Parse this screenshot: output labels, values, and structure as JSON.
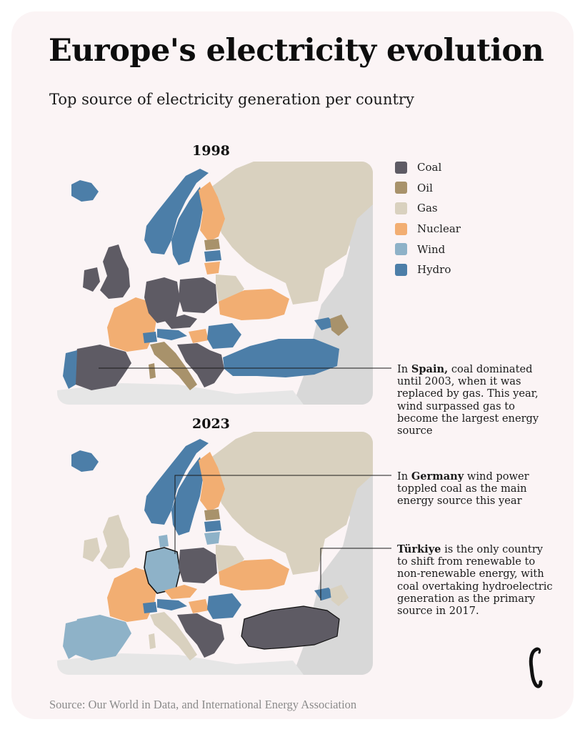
{
  "title": "Europe's electricity evolution",
  "subtitle": "Top source of electricity generation per country",
  "maps": [
    {
      "year": "1998",
      "spain_source": "Coal",
      "germany_source": "Coal",
      "turkiye_source": "Hydro"
    },
    {
      "year": "2023",
      "spain_source": "Wind",
      "germany_source": "Wind",
      "turkiye_source": "Coal"
    }
  ],
  "legend": [
    {
      "label": "Coal",
      "color": "#5e5b64"
    },
    {
      "label": "Oil",
      "color": "#a8926b"
    },
    {
      "label": "Gas",
      "color": "#d9d1bf"
    },
    {
      "label": "Nuclear",
      "color": "#f2ae72"
    },
    {
      "label": "Wind",
      "color": "#8eb2c8"
    },
    {
      "label": "Hydro",
      "color": "#4c7ea8"
    }
  ],
  "colors": {
    "coal": "#5e5b64",
    "oil": "#a8926b",
    "gas": "#d9d1bf",
    "nuclear": "#f2ae72",
    "wind": "#8eb2c8",
    "hydro": "#4c7ea8",
    "outside": "#d8d8d8"
  },
  "notes": {
    "spain": {
      "bold": "Spain,",
      "text": " coal dominated until 2003, when it was replaced by gas. This year, wind surpassed gas to become the largest energy source"
    },
    "germany": {
      "prefix": "In ",
      "bold": "Germany",
      "text": " wind power toppled coal as the main energy source this year"
    },
    "turkiye": {
      "bold": "Türkiye",
      "text": " is the only country to shift from renewable to non-renewable energy, with coal overtaking hydroelectric generation as the primary source in 2017."
    },
    "spain_prefix": "In "
  },
  "source": "Source: Our World in Data, and International Energy Association"
}
